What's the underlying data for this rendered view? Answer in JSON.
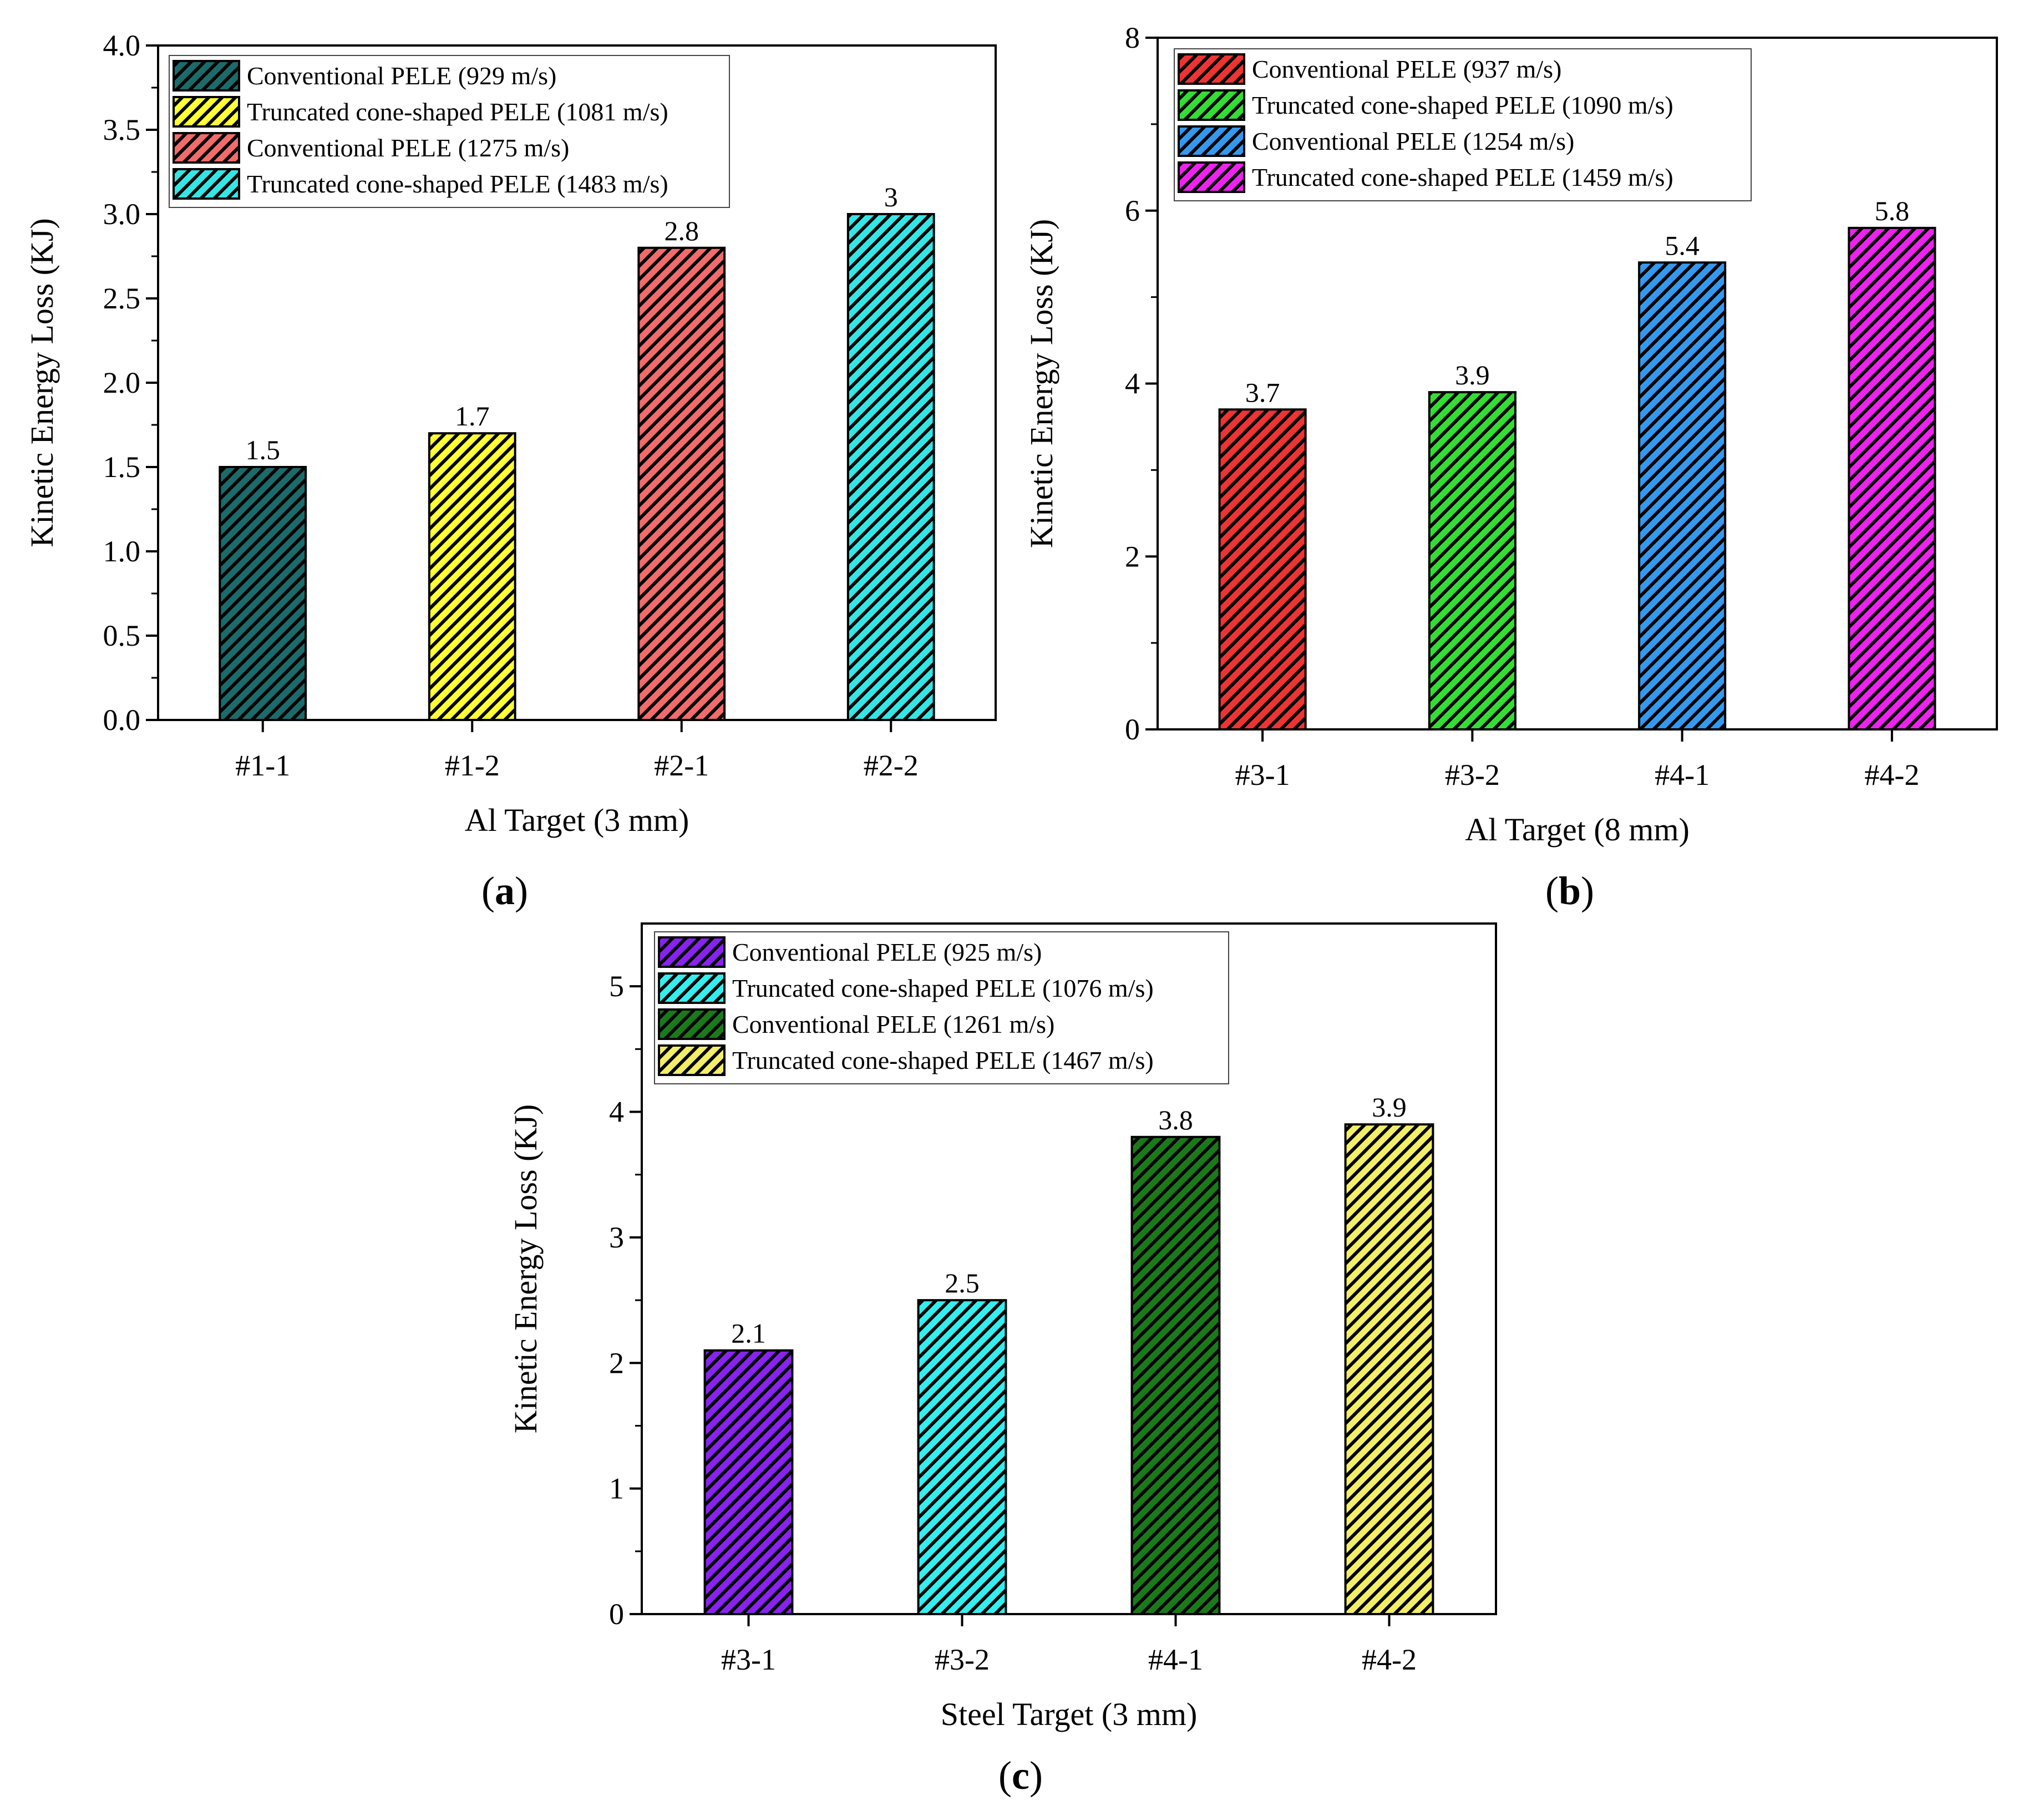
{
  "chart_data": [
    {
      "type": "bar",
      "panel_label": "a",
      "title": "",
      "xlabel": "Al Target (3 mm)",
      "ylabel": "Kinetic Energy Loss (KJ)",
      "ylim": [
        0,
        4.0
      ],
      "ytick_values": [
        0.0,
        0.5,
        1.0,
        1.5,
        2.0,
        2.5,
        3.0,
        3.5,
        4.0
      ],
      "ytick_labels": [
        "0.0",
        "0.5",
        "1.0",
        "1.5",
        "2.0",
        "2.5",
        "3.0",
        "3.5",
        "4.0"
      ],
      "categories": [
        "#1-1",
        "#1-2",
        "#2-1",
        "#2-2"
      ],
      "values": [
        1.5,
        1.7,
        2.8,
        3.0
      ],
      "value_labels": [
        "1.5",
        "1.7",
        "2.8",
        "3"
      ],
      "colors": [
        "#1b6b6b",
        "#ffff33",
        "#f26b6b",
        "#33e6e6"
      ],
      "legend_position": "top-left",
      "legend": [
        {
          "name": "Conventional PELE",
          "speed": "(929 m/s)"
        },
        {
          "name": "Truncated cone-shaped PELE",
          "speed": "(1081 m/s)"
        },
        {
          "name": "Conventional PELE",
          "speed": "(1275 m/s)"
        },
        {
          "name": "Truncated cone-shaped PELE",
          "speed": "(1483 m/s)"
        }
      ]
    },
    {
      "type": "bar",
      "panel_label": "b",
      "title": "",
      "xlabel": "Al Target (8 mm)",
      "ylabel": "Kinetic Energy Loss (KJ)",
      "ylim": [
        0,
        8
      ],
      "ytick_values": [
        0,
        2,
        4,
        6,
        8
      ],
      "ytick_labels": [
        "0",
        "2",
        "4",
        "6",
        "8"
      ],
      "categories": [
        "#3-1",
        "#3-2",
        "#4-1",
        "#4-2"
      ],
      "values": [
        3.7,
        3.9,
        5.4,
        5.8
      ],
      "value_labels": [
        "3.7",
        "3.9",
        "5.4",
        "5.8"
      ],
      "colors": [
        "#ee3333",
        "#33dd33",
        "#3399ee",
        "#ee22ee"
      ],
      "legend_position": "top-left",
      "legend": [
        {
          "name": "Conventional PELE",
          "speed": "(937 m/s)"
        },
        {
          "name": "Truncated cone-shaped PELE",
          "speed": "(1090 m/s)"
        },
        {
          "name": "Conventional PELE",
          "speed": "(1254 m/s)"
        },
        {
          "name": "Truncated cone-shaped PELE",
          "speed": "(1459 m/s)"
        }
      ]
    },
    {
      "type": "bar",
      "panel_label": "c",
      "title": "",
      "xlabel": "Steel Target (3 mm)",
      "ylabel": "Kinetic Energy Loss (KJ)",
      "ylim": [
        0,
        5.5
      ],
      "ytick_values": [
        0,
        1,
        2,
        3,
        4,
        5
      ],
      "ytick_labels": [
        "0",
        "1",
        "2",
        "3",
        "4",
        "5"
      ],
      "categories": [
        "#3-1",
        "#3-2",
        "#4-1",
        "#4-2"
      ],
      "values": [
        2.1,
        2.5,
        3.8,
        3.9
      ],
      "value_labels": [
        "2.1",
        "2.5",
        "3.8",
        "3.9"
      ],
      "colors": [
        "#8822ee",
        "#33eeee",
        "#1a7a1a",
        "#f2ee66"
      ],
      "legend_position": "top-left",
      "legend": [
        {
          "name": "Conventional PELE",
          "speed": "(925 m/s)"
        },
        {
          "name": "Truncated cone-shaped PELE",
          "speed": "(1076 m/s)"
        },
        {
          "name": "Conventional PELE",
          "speed": "(1261 m/s)"
        },
        {
          "name": "Truncated cone-shaped PELE",
          "speed": "(1467 m/s)"
        }
      ]
    }
  ]
}
